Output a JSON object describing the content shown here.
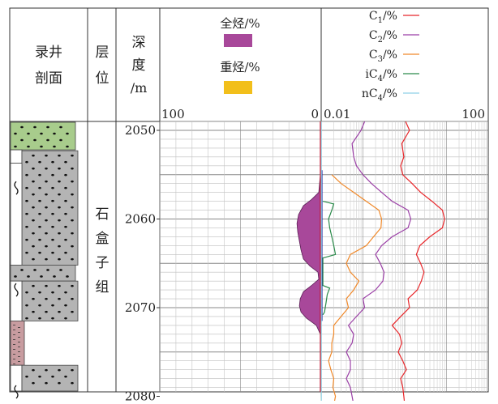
{
  "headers": {
    "lithology_line1": "录井",
    "lithology_line2": "剖面",
    "strata_line1": "层",
    "strata_line2": "位",
    "depth_line1": "深",
    "depth_line2": "度",
    "depth_line3": "/m",
    "total_gas_label": "全烃/%",
    "heavy_gas_label": "重烃/%",
    "scale_left_100": "100",
    "scale_left_0": "0",
    "scale_right_001": "0.01",
    "scale_right_100": "100"
  },
  "strata": {
    "formation_chars": [
      "石",
      "盒",
      "子",
      "组"
    ]
  },
  "colors": {
    "total_gas_fill": "#a8489a",
    "heavy_gas_fill": "#f2bf1b",
    "c1": "#e8262a",
    "c2": "#9b3fa6",
    "c3": "#f0892a",
    "ic4": "#2a8a4a",
    "nc4": "#8fd0e8",
    "sandstone_green": "#a8cc8c",
    "sandstone_grey": "#b4b4b4",
    "mudstone_pink": "#c89ca0"
  },
  "chart_data": {
    "type": "line",
    "depth_ticks": [
      2050,
      2060,
      2070,
      2080
    ],
    "ylim": [
      2049,
      2081
    ],
    "ylabel": "深度/m",
    "legend": [
      {
        "key": "c1",
        "label": "C1/%"
      },
      {
        "key": "c2",
        "label": "C2/%"
      },
      {
        "key": "c3",
        "label": "C3/%"
      },
      {
        "key": "ic4",
        "label": "iC4/%"
      },
      {
        "key": "nc4",
        "label": "nC4/%"
      }
    ],
    "left_track": {
      "title": "全烃/% 重烃/%",
      "xlim": [
        100,
        0
      ],
      "total_gas": {
        "depth": [
          2049,
          2055,
          2057,
          2057.8,
          2058.5,
          2059.5,
          2060.5,
          2061.5,
          2062.5,
          2063.5,
          2064.5,
          2065.3,
          2066,
          2066.8,
          2067.5,
          2068.2,
          2069,
          2069.8,
          2070.5,
          2071.2,
          2072,
          2073,
          2081
        ],
        "value": [
          0,
          0.5,
          1.5,
          6,
          11,
          14,
          15,
          14.5,
          13.5,
          12.5,
          11,
          7,
          2,
          1.5,
          6,
          11,
          13,
          13.5,
          12.5,
          9,
          3,
          0.5,
          0
        ]
      },
      "heavy_gas": {
        "depth": [
          2049,
          2081
        ],
        "value": [
          0,
          0
        ]
      }
    },
    "right_track": {
      "title": "C1/% C2/% C3/% iC4/% nC4/%",
      "xscale": "log",
      "xlim": [
        0.01,
        100
      ],
      "series": [
        {
          "key": "c1",
          "depth": [
            2049,
            2050,
            2051.5,
            2053,
            2054,
            2055,
            2056,
            2057,
            2058,
            2059,
            2060,
            2061,
            2062,
            2063,
            2064,
            2065,
            2066,
            2067,
            2068,
            2069,
            2070,
            2071,
            2072,
            2073,
            2074,
            2075,
            2076,
            2077,
            2078,
            2079,
            2080,
            2081
          ],
          "value": [
            1.05,
            1.3,
            0.85,
            0.95,
            0.8,
            0.9,
            1.5,
            2.4,
            4.5,
            8,
            9,
            8,
            4,
            2.3,
            1.9,
            2.4,
            2.9,
            2.5,
            2.0,
            1.2,
            1.3,
            0.8,
            0.5,
            0.75,
            0.85,
            0.7,
            0.9,
            1.1,
            0.8,
            0.9,
            0.95,
            1.0
          ]
        },
        {
          "key": "c2",
          "depth": [
            2049,
            2050,
            2051.5,
            2053,
            2054,
            2055,
            2056,
            2057,
            2058,
            2059,
            2060,
            2061,
            2062,
            2063,
            2064,
            2065,
            2066,
            2067,
            2068,
            2069,
            2070,
            2071,
            2072,
            2073,
            2074,
            2075,
            2076,
            2077,
            2078,
            2079,
            2080,
            2081
          ],
          "value": [
            0.11,
            0.09,
            0.055,
            0.06,
            0.07,
            0.1,
            0.16,
            0.28,
            0.5,
            1.2,
            1.4,
            1.2,
            0.5,
            0.28,
            0.2,
            0.26,
            0.32,
            0.3,
            0.2,
            0.1,
            0.11,
            0.07,
            0.045,
            0.06,
            0.055,
            0.04,
            0.05,
            0.05,
            0.04,
            0.05,
            0.055,
            0.06
          ]
        },
        {
          "key": "c3",
          "depth": [
            2055,
            2056,
            2057,
            2058,
            2059,
            2060,
            2061,
            2062,
            2063,
            2064,
            2065,
            2066,
            2067,
            2068,
            2069,
            2070,
            2071,
            2072,
            2073,
            2074,
            2075,
            2076,
            2077,
            2078,
            2079,
            2080,
            2081
          ],
          "value": [
            0.018,
            0.03,
            0.06,
            0.12,
            0.24,
            0.28,
            0.27,
            0.18,
            0.12,
            0.05,
            0.04,
            0.05,
            0.08,
            0.06,
            0.04,
            0.045,
            0.03,
            0.02,
            0.02,
            0.018,
            0.018,
            0.015,
            0.017,
            0.02,
            0.019,
            0.022,
            0.02
          ]
        },
        {
          "key": "ic4",
          "depth": [
            2058.0,
            2058.3,
            2059,
            2060,
            2061,
            2062,
            2063,
            2064,
            2064.4,
            2067.5,
            2067.8,
            2068.5,
            2069.5,
            2070.5,
            2070.8
          ],
          "value": [
            0.011,
            0.02,
            0.018,
            0.015,
            0.016,
            0.018,
            0.02,
            0.022,
            0.011,
            0.011,
            0.016,
            0.014,
            0.013,
            0.012,
            0.011
          ]
        },
        {
          "key": "nc4",
          "depth": [
            2049,
            2081
          ],
          "value": [
            0.0101,
            0.0101
          ]
        }
      ]
    }
  }
}
